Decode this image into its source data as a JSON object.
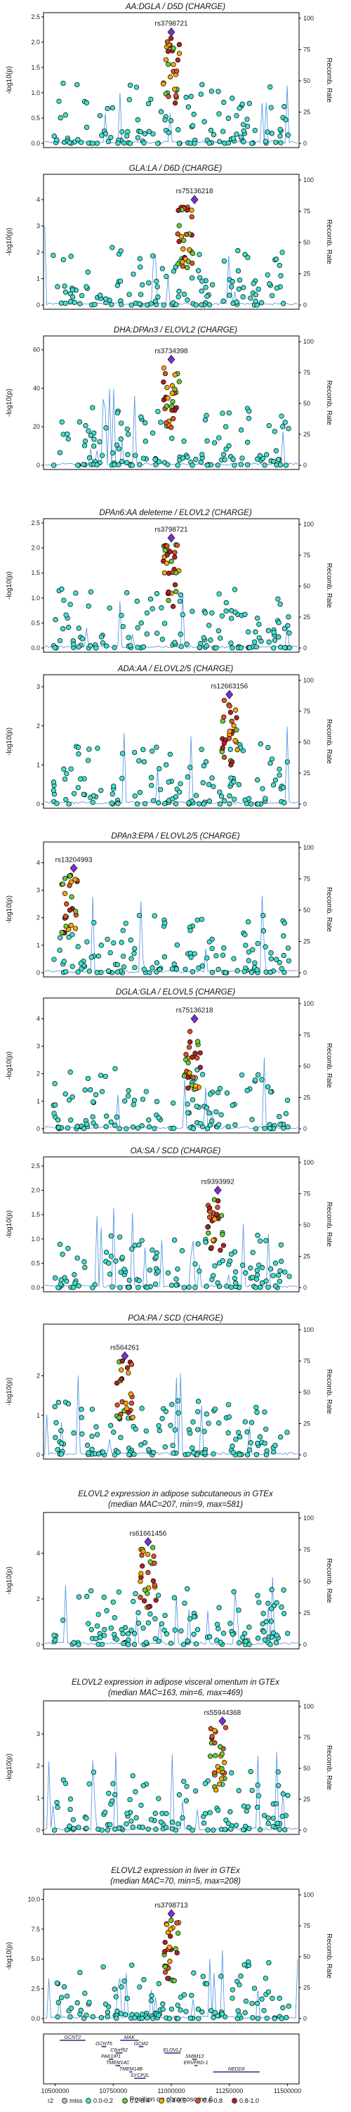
{
  "chart_data": {
    "type": "scatter",
    "xlabel": "Position on chromosome 6",
    "xticks": [
      "10500000",
      "10750000",
      "11000000",
      "11250000",
      "11500000"
    ],
    "xlim": [
      10450000,
      11550000
    ],
    "y2label": "Recomb. Rate",
    "y2ticks": [
      "0",
      "25",
      "50",
      "75",
      "100"
    ],
    "ylabel_panel": "-log10(p)",
    "panels": [
      {
        "title_lines": [
          "AA:DGLA / D5D (CHARGE)"
        ],
        "lead_snp": "rs3798721",
        "lead_pos": 11000000,
        "lead_y": 2.2,
        "yticks": [
          "0.0",
          "0.5",
          "1.0",
          "1.5",
          "2.0",
          "2.5"
        ],
        "ylim": [
          0,
          2.5
        ],
        "cluster_pos": 11000000
      },
      {
        "title_lines": [
          "GLA:LA / D6D (CHARGE)"
        ],
        "lead_snp": "rs75136218",
        "lead_pos": 11100000,
        "lead_y": 4.0,
        "yticks": [
          "0",
          "1",
          "2",
          "3",
          "4"
        ],
        "ylim": [
          0,
          4.8
        ],
        "cluster_pos": 11060000
      },
      {
        "title_lines": [
          "DHA:DPAn3 / ELOVL2 (CHARGE)"
        ],
        "lead_snp": "rs3734398",
        "lead_pos": 11000000,
        "lead_y": 55,
        "yticks": [
          "0",
          "20",
          "40",
          "60"
        ],
        "ylim": [
          0,
          65
        ],
        "cluster_pos": 11000000
      },
      {
        "title_lines": [
          "DPAn6:AA deleteme / ELOVL2 (CHARGE)"
        ],
        "lead_snp": "rs3798721",
        "lead_pos": 11000000,
        "lead_y": 2.2,
        "yticks": [
          "0.0",
          "0.5",
          "1.0",
          "1.5",
          "2.0",
          "2.5"
        ],
        "ylim": [
          0,
          2.5
        ],
        "cluster_pos": 11000000
      },
      {
        "title_lines": [
          "ADA:AA / ELOVL2/5 (CHARGE)"
        ],
        "lead_snp": "rs12663156",
        "lead_pos": 11250000,
        "lead_y": 2.8,
        "yticks": [
          "0",
          "1",
          "2",
          "3"
        ],
        "ylim": [
          0,
          3.2
        ],
        "cluster_pos": 11250000
      },
      {
        "title_lines": [
          "DPAn3:EPA / ELOVL2/5 (CHARGE)"
        ],
        "lead_snp": "rs13204993",
        "lead_pos": 10580000,
        "lead_y": 3.8,
        "yticks": [
          "0",
          "1",
          "2",
          "3",
          "4"
        ],
        "ylim": [
          0,
          4.6
        ],
        "cluster_pos": 10560000
      },
      {
        "title_lines": [
          "DGLA:GLA / ELOVL5 (CHARGE)"
        ],
        "lead_snp": "rs75136218",
        "lead_pos": 11100000,
        "lead_y": 4.0,
        "yticks": [
          "0",
          "1",
          "2",
          "3",
          "4"
        ],
        "ylim": [
          0,
          4.6
        ],
        "cluster_pos": 11090000
      },
      {
        "title_lines": [
          "OA:SA / SCD (CHARGE)"
        ],
        "lead_snp": "rs9393992",
        "lead_pos": 11200000,
        "lead_y": 2.0,
        "yticks": [
          "0.0",
          "0.5",
          "1.0",
          "1.5",
          "2.0",
          "2.5"
        ],
        "ylim": [
          0,
          2.6
        ],
        "cluster_pos": 11190000
      },
      {
        "title_lines": [
          "POA:PA / SCD (CHARGE)"
        ],
        "lead_snp": "rs564261",
        "lead_pos": 10800000,
        "lead_y": 2.5,
        "yticks": [
          "0",
          "1",
          "2"
        ],
        "ylim": [
          0,
          3.2
        ],
        "cluster_pos": 10800000
      },
      {
        "title_lines": [
          "ELOVL2 expression in adipose subcutaneous in GTEx",
          "(median MAC=207, min=9, max=581)"
        ],
        "lead_snp": "rs61661456",
        "lead_pos": 10900000,
        "lead_y": 4.5,
        "yticks": [
          "0",
          "2",
          "4"
        ],
        "ylim": [
          0,
          5.6
        ],
        "cluster_pos": 10900000
      },
      {
        "title_lines": [
          "ELOVL2 expression in adipose visceral omentum in GTEx",
          "(median MAC=163, min=6, max=469)"
        ],
        "lead_snp": "rs55944368",
        "lead_pos": 11220000,
        "lead_y": 3.4,
        "yticks": [
          "0",
          "1",
          "2",
          "3"
        ],
        "ylim": [
          0,
          3.9
        ],
        "cluster_pos": 11200000
      },
      {
        "title_lines": [
          "ELOVL2 expression in liver in GTEx",
          "(median MAC=70, min=5, max=208)"
        ],
        "lead_snp": "rs3798713",
        "lead_pos": 11000000,
        "lead_y": 8.8,
        "yticks": [
          "0.0",
          "2.5",
          "5.0",
          "7.5",
          "10.0"
        ],
        "ylim": [
          0,
          10.5
        ],
        "cluster_pos": 11000000
      }
    ],
    "genes": [
      {
        "name": "GCNT2",
        "start": 10520000,
        "end": 10630000
      },
      {
        "name": "GCNT6",
        "start": 10700000,
        "end": 10720000
      },
      {
        "name": "C6orf52",
        "start": 10760000,
        "end": 10790000
      },
      {
        "name": "PAK1IP1",
        "start": 10730000,
        "end": 10750000
      },
      {
        "name": "TMEM14C",
        "start": 10760000,
        "end": 10780000
      },
      {
        "name": "TMEM14B",
        "start": 10820000,
        "end": 10830000
      },
      {
        "name": "SYCP2L",
        "start": 10840000,
        "end": 10890000
      },
      {
        "name": "MAK",
        "start": 10780000,
        "end": 10860000
      },
      {
        "name": "GCM2",
        "start": 10860000,
        "end": 10880000
      },
      {
        "name": "ELOVL2",
        "start": 10970000,
        "end": 11040000
      },
      {
        "name": "SMIM13",
        "start": 11090000,
        "end": 11110000
      },
      {
        "name": "ERVFRD-1",
        "start": 11100000,
        "end": 11110000
      },
      {
        "name": "NEDD9",
        "start": 11180000,
        "end": 11380000
      }
    ],
    "legend": {
      "title": "r2",
      "items": [
        {
          "label": "miss",
          "color": "#bdbdbd"
        },
        {
          "label": "0.0-0.2",
          "color": "#40e0d0"
        },
        {
          "label": "0.2-0.4",
          "color": "#66cc33"
        },
        {
          "label": "0.4-0.6",
          "color": "#ffa500"
        },
        {
          "label": "0.6-0.8",
          "color": "#dd5522"
        },
        {
          "label": "0.8-1.0",
          "color": "#b22222"
        }
      ]
    },
    "colors": {
      "lead": "#7a2fd6",
      "recomb": "#4a90e2",
      "point_outline": "#000000"
    }
  }
}
